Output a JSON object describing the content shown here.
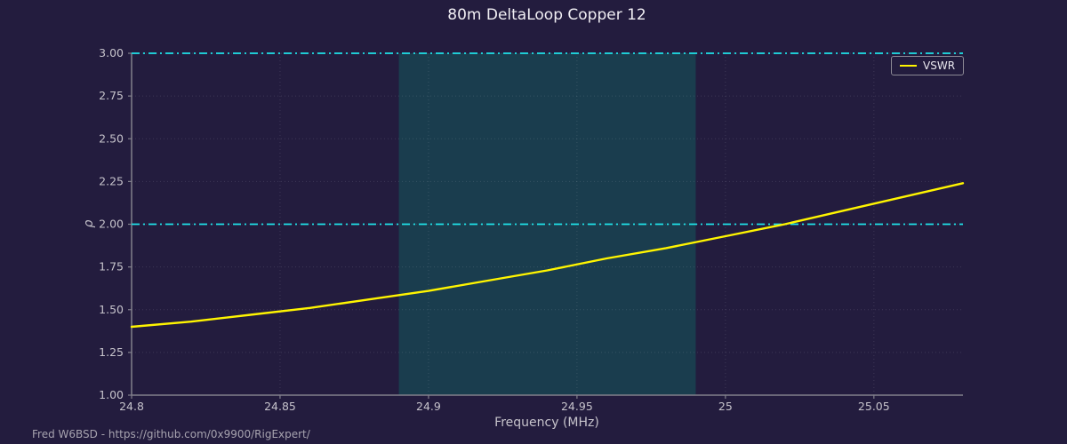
{
  "figure": {
    "footer": "Fred W6BSD - https://github.com/0x9900/RigExpert/"
  },
  "chart_data": {
    "type": "line",
    "title": "80m DeltaLoop Copper 12",
    "xlabel": "Frequency (MHz)",
    "ylabel": "ρ",
    "xlim": [
      24.8,
      25.08
    ],
    "ylim": [
      1.0,
      3.0
    ],
    "x_ticks": [
      24.8,
      24.85,
      24.9,
      24.95,
      25,
      25.05
    ],
    "x_tick_labels": [
      "24.8",
      "24.85",
      "24.9",
      "24.95",
      "25",
      "25.05"
    ],
    "y_ticks": [
      1.0,
      1.25,
      1.5,
      1.75,
      2.0,
      2.25,
      2.5,
      2.75,
      3.0
    ],
    "y_tick_labels": [
      "1.00",
      "1.25",
      "1.50",
      "1.75",
      "2.00",
      "2.25",
      "2.50",
      "2.75",
      "3.00"
    ],
    "grid": "dotted, both axes",
    "legend": {
      "position": "upper right",
      "entries": [
        {
          "label": "VSWR",
          "color": "#fff500"
        }
      ]
    },
    "series": [
      {
        "name": "VSWR",
        "color": "#fff500",
        "x": [
          24.8,
          24.82,
          24.84,
          24.86,
          24.88,
          24.9,
          24.92,
          24.94,
          24.96,
          24.98,
          25.0,
          25.02,
          25.04,
          25.06,
          25.08
        ],
        "y": [
          1.4,
          1.43,
          1.47,
          1.51,
          1.56,
          1.61,
          1.67,
          1.73,
          1.8,
          1.86,
          1.93,
          2.0,
          2.08,
          2.16,
          2.24
        ]
      }
    ],
    "reference_lines": {
      "values": [
        2.0,
        3.0
      ],
      "style": "dash-dot",
      "color": "#1fe3ea"
    },
    "shaded_region": {
      "x_start": 24.89,
      "x_end": 24.99,
      "color": "#1a3d4e"
    }
  },
  "colors": {
    "background": "#231c3e",
    "band": "#1a3d4e",
    "reference_cyan": "#1fe3ea",
    "series_yellow": "#fff500",
    "grid": "rgba(205,205,220,0.16)",
    "spine": "#82808c",
    "tick_label": "#c6c3cb",
    "title_text": "#f0eef3",
    "footer_text": "#a7a3af"
  }
}
